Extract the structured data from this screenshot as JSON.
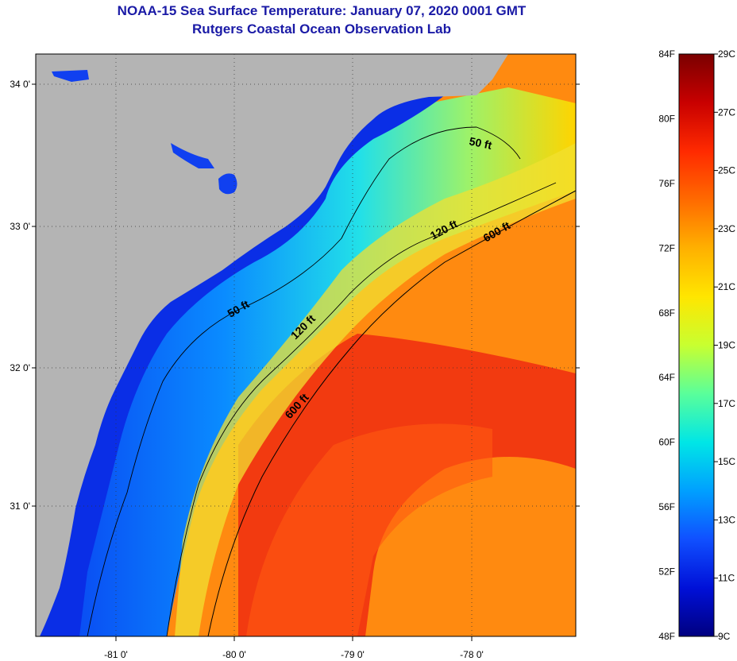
{
  "title": {
    "line1": "NOAA-15 Sea Surface Temperature:  January 07, 2020 0001 GMT",
    "line2": "Rutgers Coastal Ocean Observation Lab"
  },
  "map": {
    "lat_labels": [
      "34 0'",
      "33 0'",
      "32 0'",
      "31 0'"
    ],
    "lon_labels": [
      "-81 0'",
      "-80 0'",
      "-79 0'",
      "-78 0'"
    ],
    "isobath_labels": [
      "50 ft",
      "50 ft",
      "120 ft",
      "120 ft",
      "600 ft",
      "600 ft"
    ],
    "land_color": "#b4b4b4"
  },
  "colorbar": {
    "fahrenheit": [
      "84F",
      "80F",
      "76F",
      "72F",
      "68F",
      "64F",
      "60F",
      "56F",
      "52F",
      "48F"
    ],
    "celsius": [
      "29C",
      "27C",
      "25C",
      "23C",
      "21C",
      "19C",
      "17C",
      "15C",
      "13C",
      "11C",
      "9C"
    ],
    "gradient": [
      "#7a0000",
      "#c80000",
      "#ff2a00",
      "#ff6a00",
      "#ffb000",
      "#ffe600",
      "#c8ff30",
      "#5aff9a",
      "#00e6e6",
      "#00a0ff",
      "#1050ff",
      "#0010d8",
      "#000080"
    ]
  }
}
